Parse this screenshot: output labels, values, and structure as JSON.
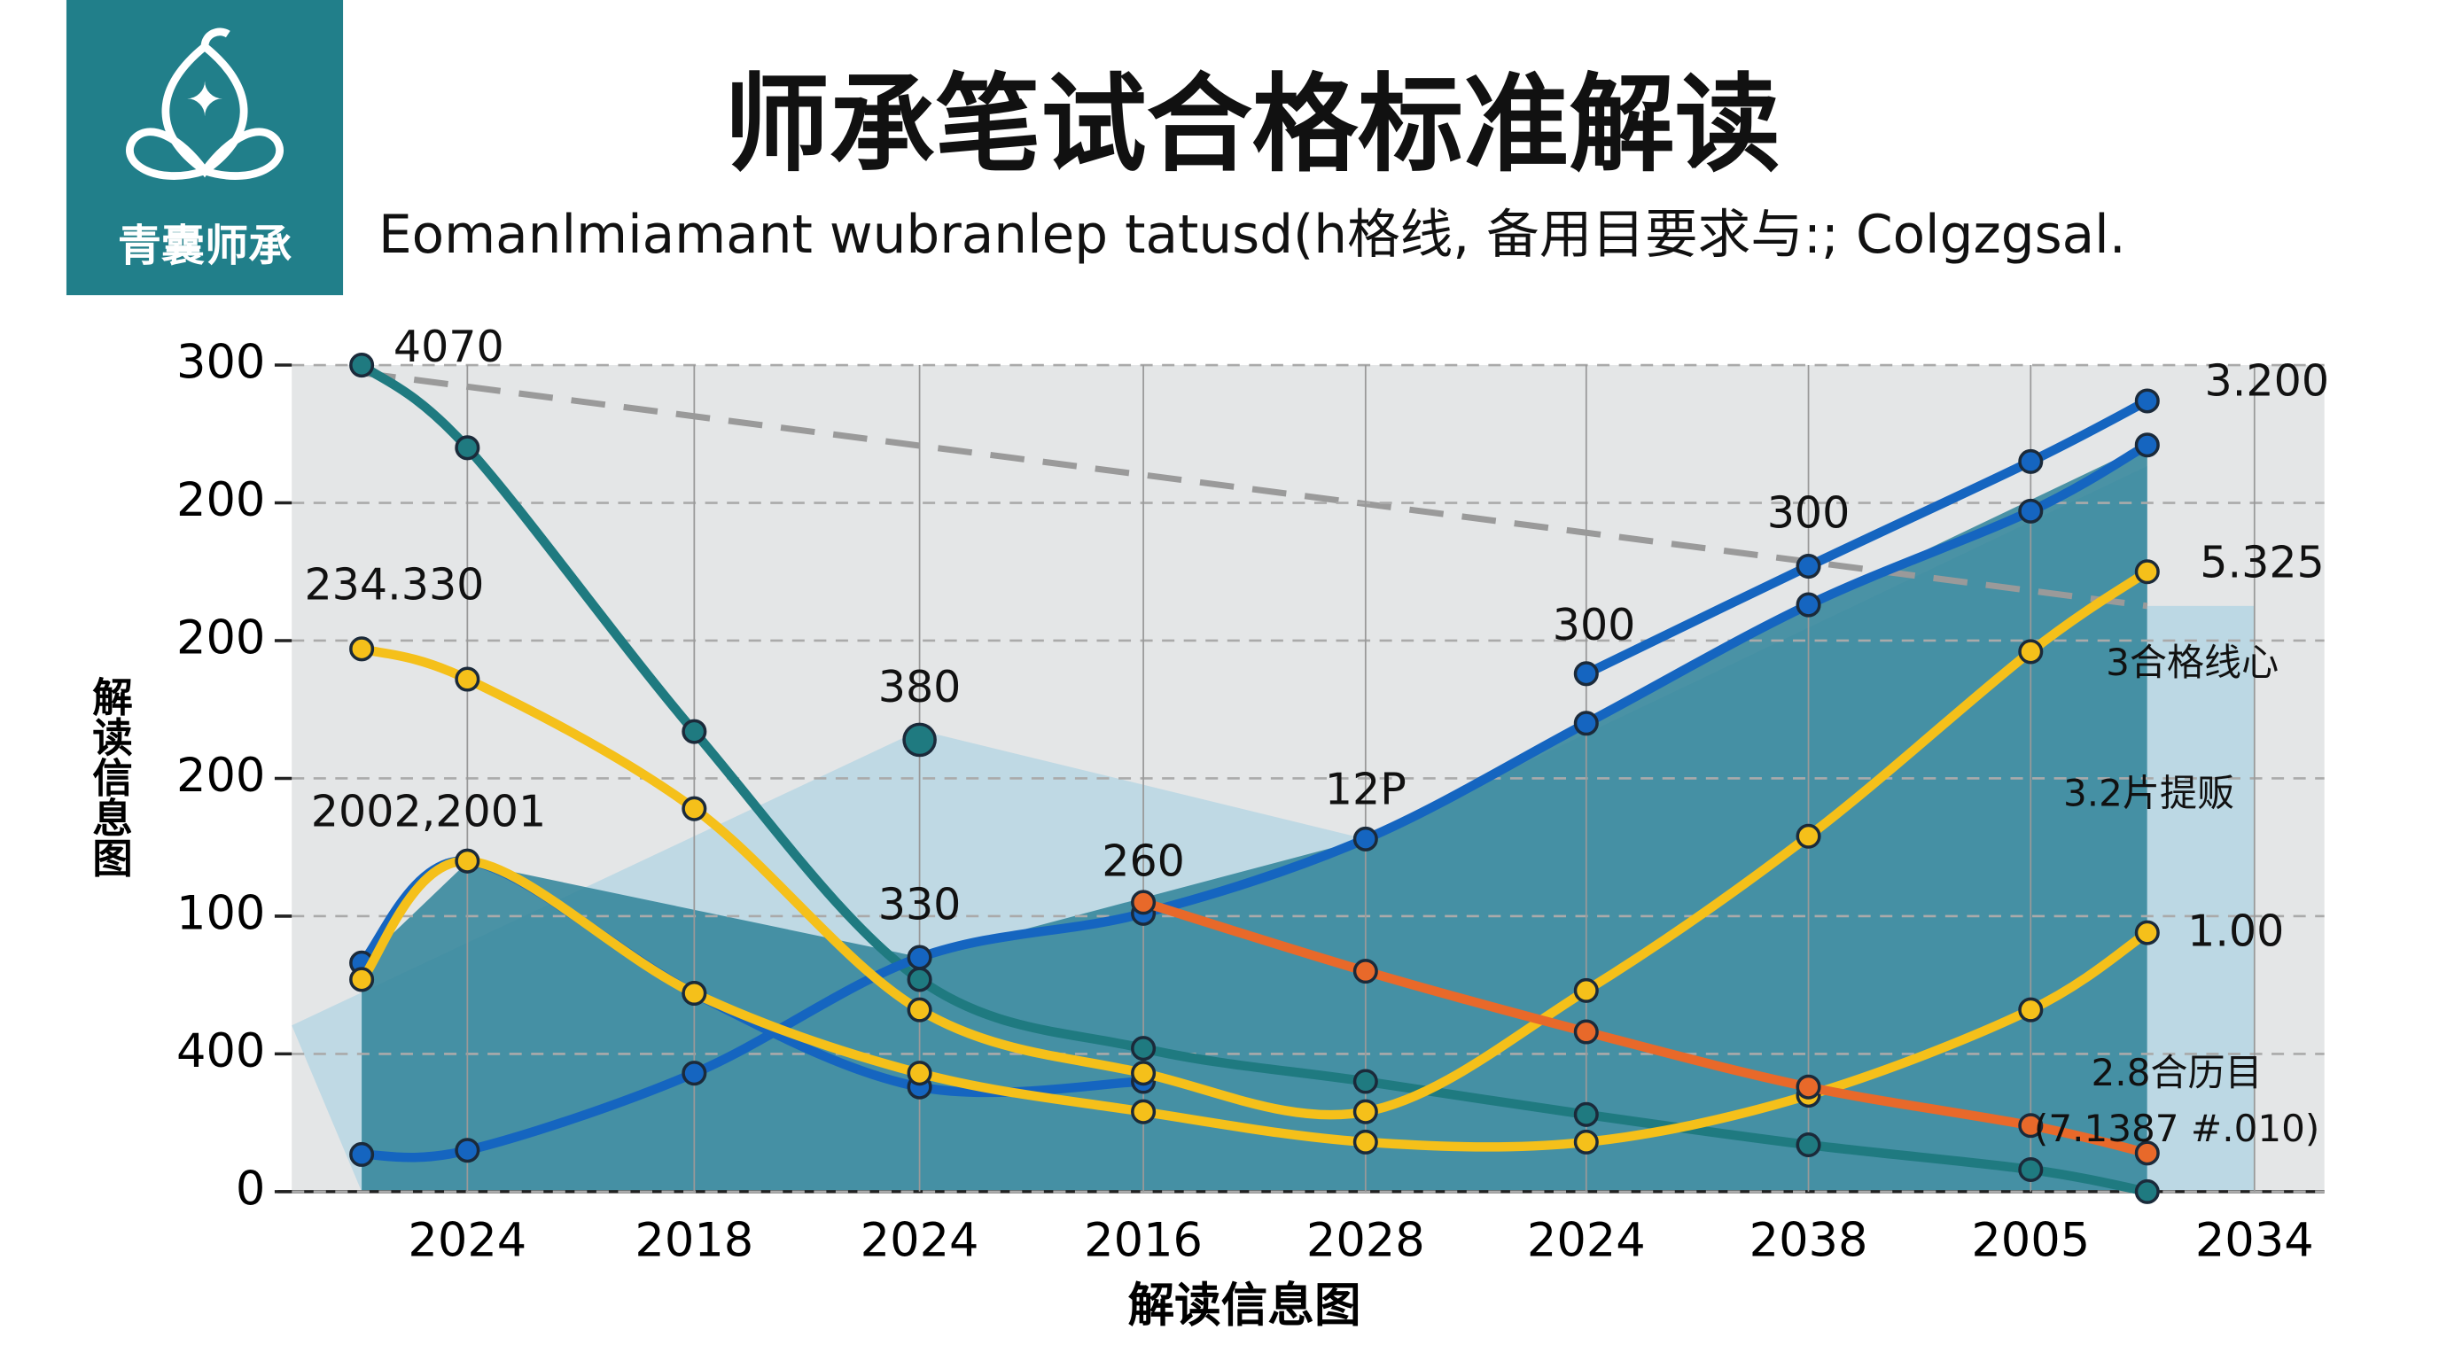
{
  "logo_text": "青囊师承",
  "chart_data": {
    "type": "line",
    "title": "师承笔试合格标准解读",
    "subtitle": "Eomanlmiamant wubranlep tatusd(h格线, 备用目要求与:; Colgzgsal.",
    "y_label": "解读信息图",
    "x_label": "解读信息图",
    "categories": [
      null,
      "2024",
      "2018",
      "2024",
      "2016",
      "2028",
      "2024",
      "2038",
      "2005",
      null,
      "2034"
    ],
    "ylim": [
      0,
      300
    ],
    "yticks": [
      0,
      {
        "value": 50,
        "label": "400"
      },
      100,
      {
        "value": 150,
        "label": "200"
      },
      200,
      {
        "value": 250,
        "label": "200"
      },
      300
    ],
    "grid": true,
    "series": [
      {
        "color": "#1f7a80",
        "values": [
          300,
          270,
          167,
          77,
          52,
          40,
          28,
          17,
          8,
          0,
          null
        ]
      },
      {
        "color": "#1f7a80",
        "values": [
          null,
          null,
          null,
          164,
          null,
          null,
          null,
          null,
          null,
          null,
          null
        ]
      },
      {
        "color": "#1565c0",
        "values": [
          null,
          null,
          null,
          null,
          null,
          null,
          188,
          227,
          265,
          287,
          null
        ]
      },
      {
        "color": "#1565c0",
        "values": [
          13.5,
          15,
          43,
          85,
          101,
          128,
          170,
          213,
          247,
          271,
          null
        ]
      },
      {
        "color": "#1565c0",
        "values": [
          83,
          120,
          72,
          38,
          40,
          null,
          null,
          null,
          null,
          null,
          null
        ]
      },
      {
        "color": "#f5c01a",
        "values": [
          197,
          186,
          139,
          66,
          43,
          29,
          73,
          129,
          196,
          225,
          null
        ]
      },
      {
        "color": "#f5c01a",
        "values": [
          77,
          120,
          72,
          43,
          29,
          18,
          18,
          35,
          66,
          94,
          null
        ]
      },
      {
        "color": "#e8692a",
        "values": [
          null,
          null,
          null,
          null,
          105,
          80,
          58,
          38,
          24,
          14,
          null
        ]
      }
    ],
    "annotations": [
      "4070",
      "3.200",
      "234.330",
      "380",
      "300",
      "300",
      "2002,2001",
      "260",
      "330",
      "12P",
      "5.325",
      "3合格线心",
      "3.2片提贩",
      "1.00",
      "2.8合历目",
      "(7.1387 #.010)"
    ]
  }
}
